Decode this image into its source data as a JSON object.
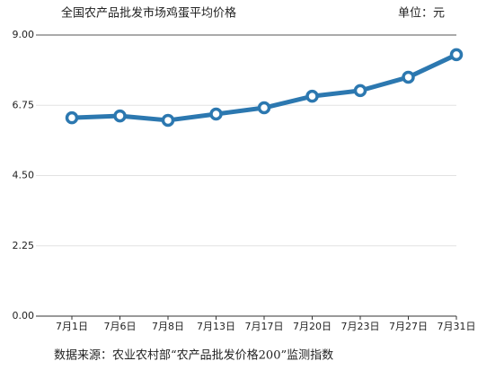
{
  "chart_data": {
    "type": "line",
    "title": "全国农产品批发市场鸡蛋平均价格",
    "unit_label": "单位：元",
    "source": "数据来源：农业农村部“农产品批发价格200”监测指数",
    "categories": [
      "7月1日",
      "7月6日",
      "7月8日",
      "7月13日",
      "7月17日",
      "7月20日",
      "7月23日",
      "7月27日",
      "7月31日"
    ],
    "values": [
      6.35,
      6.41,
      6.27,
      6.47,
      6.67,
      7.04,
      7.22,
      7.65,
      8.37
    ],
    "color": "#2c78b0",
    "ylim": [
      0,
      9
    ],
    "yticks": [
      {
        "value": 0,
        "label": "0.00"
      },
      {
        "value": 2.25,
        "label": "2.25"
      },
      {
        "value": 4.5,
        "label": "4.50"
      },
      {
        "value": 6.75,
        "label": "6.75"
      },
      {
        "value": 9,
        "label": "9.00"
      }
    ],
    "grid": true
  }
}
